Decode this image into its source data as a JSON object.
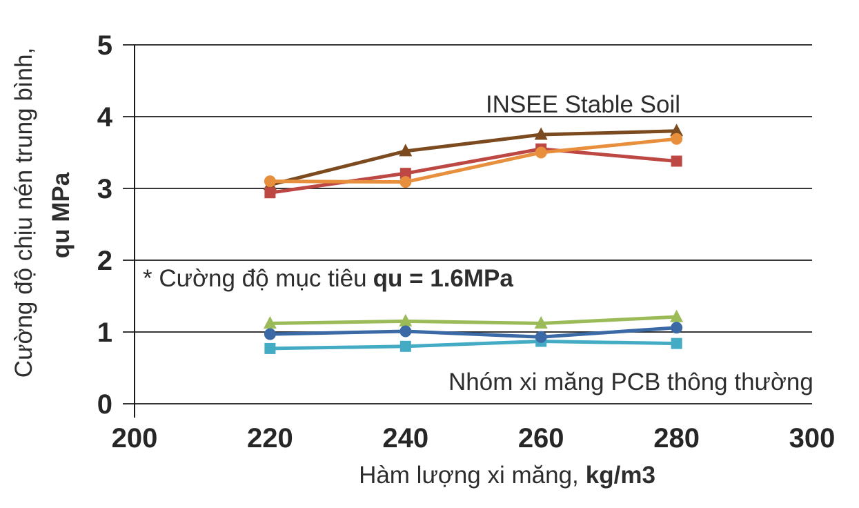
{
  "chart_data": {
    "type": "line",
    "x": [
      220,
      240,
      260,
      280
    ],
    "xlim": [
      200,
      300
    ],
    "ylim": [
      0,
      5
    ],
    "x_ticks": [
      200,
      220,
      240,
      260,
      280,
      300
    ],
    "y_ticks": [
      0,
      1,
      2,
      3,
      4,
      5
    ],
    "xlabel": "Hàm lượng xi măng,",
    "xlabel_bold": "kg/m3",
    "ylabel_line1": "Cường độ chịu nén trung bình,",
    "ylabel_line2": "qu MPa",
    "grid": true,
    "legend": "none",
    "series": [
      {
        "name": "insee-brown-triangle",
        "group": "INSEE Stable Soil",
        "marker": "triangle",
        "color": "#7B4A1E",
        "values": [
          3.05,
          3.52,
          3.75,
          3.8
        ]
      },
      {
        "name": "insee-red-square",
        "group": "INSEE Stable Soil",
        "marker": "square",
        "color": "#BD4743",
        "values": [
          2.94,
          3.21,
          3.55,
          3.38
        ]
      },
      {
        "name": "insee-orange-circle",
        "group": "INSEE Stable Soil",
        "marker": "circle",
        "color": "#E78F3C",
        "values": [
          3.1,
          3.09,
          3.5,
          3.69
        ]
      },
      {
        "name": "pcb-green-triangle",
        "group": "Nhóm xi măng PCB thông thường",
        "marker": "triangle",
        "color": "#9BBB59",
        "values": [
          1.12,
          1.15,
          1.12,
          1.21
        ]
      },
      {
        "name": "pcb-teal-square",
        "group": "Nhóm xi măng PCB thông thường",
        "marker": "square",
        "color": "#44ABC5",
        "values": [
          0.77,
          0.8,
          0.87,
          0.84
        ]
      },
      {
        "name": "pcb-blue-circle",
        "group": "Nhóm xi măng PCB thông thường",
        "marker": "circle",
        "color": "#3A69A6",
        "values": [
          0.97,
          1.01,
          0.93,
          1.06
        ]
      }
    ],
    "annotations": {
      "insee": {
        "text": "INSEE Stable Soil",
        "color": "#7C4D26"
      },
      "target": {
        "prefix": "* Cường độ mục tiêu",
        "bold": "qu = 1.6MPa"
      },
      "pcb": {
        "text": "Nhóm xi măng PCB thông thường"
      }
    },
    "axis_color": "#1a1a1a"
  }
}
